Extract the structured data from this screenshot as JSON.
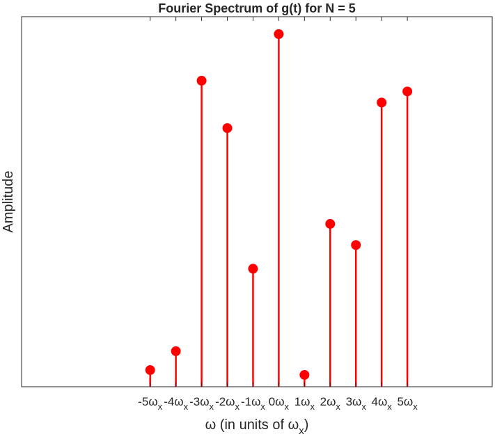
{
  "chart_data": {
    "type": "stem",
    "title": "Fourier Spectrum of g(t) for N = 5",
    "xlabel": {
      "prefix": "ω (in units of ω",
      "sub": "x",
      "suffix": ")"
    },
    "ylabel": "Amplitude",
    "x": [
      -5,
      -4,
      -3,
      -2,
      -1,
      0,
      1,
      2,
      3,
      4,
      5
    ],
    "tick_labels": [
      {
        "num": "-5",
        "sym": "ω",
        "sub": "x"
      },
      {
        "num": "-4",
        "sym": "ω",
        "sub": "x"
      },
      {
        "num": "-3",
        "sym": "ω",
        "sub": "x"
      },
      {
        "num": "-2",
        "sym": "ω",
        "sub": "x"
      },
      {
        "num": "-1",
        "sym": "ω",
        "sub": "x"
      },
      {
        "num": "0",
        "sym": "ω",
        "sub": "x"
      },
      {
        "num": "1",
        "sym": "ω",
        "sub": "x"
      },
      {
        "num": "2",
        "sym": "ω",
        "sub": "x"
      },
      {
        "num": "3",
        "sym": "ω",
        "sub": "x"
      },
      {
        "num": "4",
        "sym": "ω",
        "sub": "x"
      },
      {
        "num": "5",
        "sym": "ω",
        "sub": "x"
      }
    ],
    "values": [
      0.045,
      0.096,
      0.827,
      0.699,
      0.319,
      0.953,
      0.032,
      0.44,
      0.383,
      0.768,
      0.798
    ],
    "xlim": [
      -10,
      8.3
    ],
    "ylim": [
      0,
      1.0
    ],
    "color": "#ff0000",
    "grid": false,
    "legend": "none"
  }
}
